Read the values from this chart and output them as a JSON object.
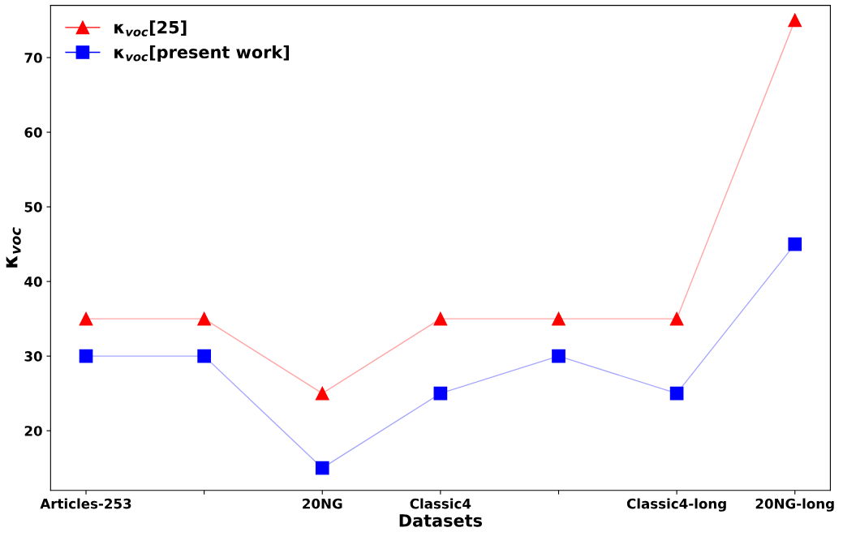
{
  "chart_data": {
    "type": "line",
    "xlabel": "Datasets",
    "ylabel": "κ$_{voc}$",
    "categories": [
      "Articles-253",
      null,
      "20NG",
      "Classic4",
      null,
      "Classic4-long",
      "20NG-long"
    ],
    "series": [
      {
        "name": "κ$_{voc}$[25]",
        "color": "#ff0000",
        "marker": "triangle",
        "values": [
          35,
          35,
          25,
          35,
          35,
          35,
          75
        ]
      },
      {
        "name": "κ$_{voc}$[present work]",
        "color": "#0000ff",
        "marker": "square",
        "values": [
          30,
          30,
          15,
          25,
          30,
          25,
          45
        ]
      }
    ],
    "ylim": [
      12,
      77
    ],
    "yticks": [
      20,
      30,
      40,
      50,
      60,
      70
    ],
    "grid": false,
    "legend": "top left",
    "line_style": "solid"
  }
}
